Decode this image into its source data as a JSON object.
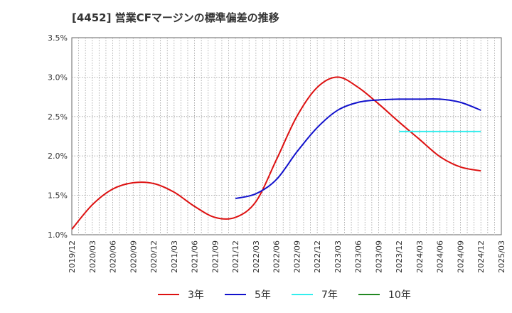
{
  "chart_data": {
    "type": "line",
    "title": "[4452]  営業CFマージンの標準偏差の推移",
    "xlabel": "",
    "ylabel": "",
    "ylim": [
      1.0,
      3.5
    ],
    "yticks": [
      "1.0%",
      "1.5%",
      "2.0%",
      "2.5%",
      "3.0%",
      "3.5%"
    ],
    "ytick_values": [
      1.0,
      1.5,
      2.0,
      2.5,
      3.0,
      3.5
    ],
    "categories": [
      "2019/12",
      "2020/03",
      "2020/06",
      "2020/09",
      "2020/12",
      "2021/03",
      "2021/06",
      "2021/09",
      "2021/12",
      "2022/03",
      "2022/06",
      "2022/09",
      "2022/12",
      "2023/03",
      "2023/06",
      "2023/09",
      "2023/12",
      "2024/03",
      "2024/06",
      "2024/09",
      "2024/12",
      "2025/03"
    ],
    "grid": true,
    "legend_position": "bottom",
    "series": [
      {
        "name": "3年",
        "color": "#dd1111",
        "values": [
          1.07,
          1.38,
          1.58,
          1.66,
          1.65,
          1.54,
          1.36,
          1.22,
          1.22,
          1.42,
          1.95,
          2.5,
          2.87,
          3.0,
          2.87,
          2.66,
          2.43,
          2.21,
          1.99,
          1.86,
          1.81,
          null
        ]
      },
      {
        "name": "5年",
        "color": "#1111cc",
        "values": [
          null,
          null,
          null,
          null,
          null,
          null,
          null,
          null,
          1.46,
          1.52,
          1.7,
          2.05,
          2.36,
          2.58,
          2.68,
          2.71,
          2.72,
          2.72,
          2.72,
          2.68,
          2.58,
          null
        ]
      },
      {
        "name": "7年",
        "color": "#33eeee",
        "values": [
          null,
          null,
          null,
          null,
          null,
          null,
          null,
          null,
          null,
          null,
          null,
          null,
          null,
          null,
          null,
          null,
          2.31,
          2.31,
          2.31,
          2.31,
          2.31,
          null
        ]
      },
      {
        "name": "10年",
        "color": "#228822",
        "values": [
          null,
          null,
          null,
          null,
          null,
          null,
          null,
          null,
          null,
          null,
          null,
          null,
          null,
          null,
          null,
          null,
          null,
          null,
          null,
          null,
          null,
          null
        ]
      }
    ]
  }
}
